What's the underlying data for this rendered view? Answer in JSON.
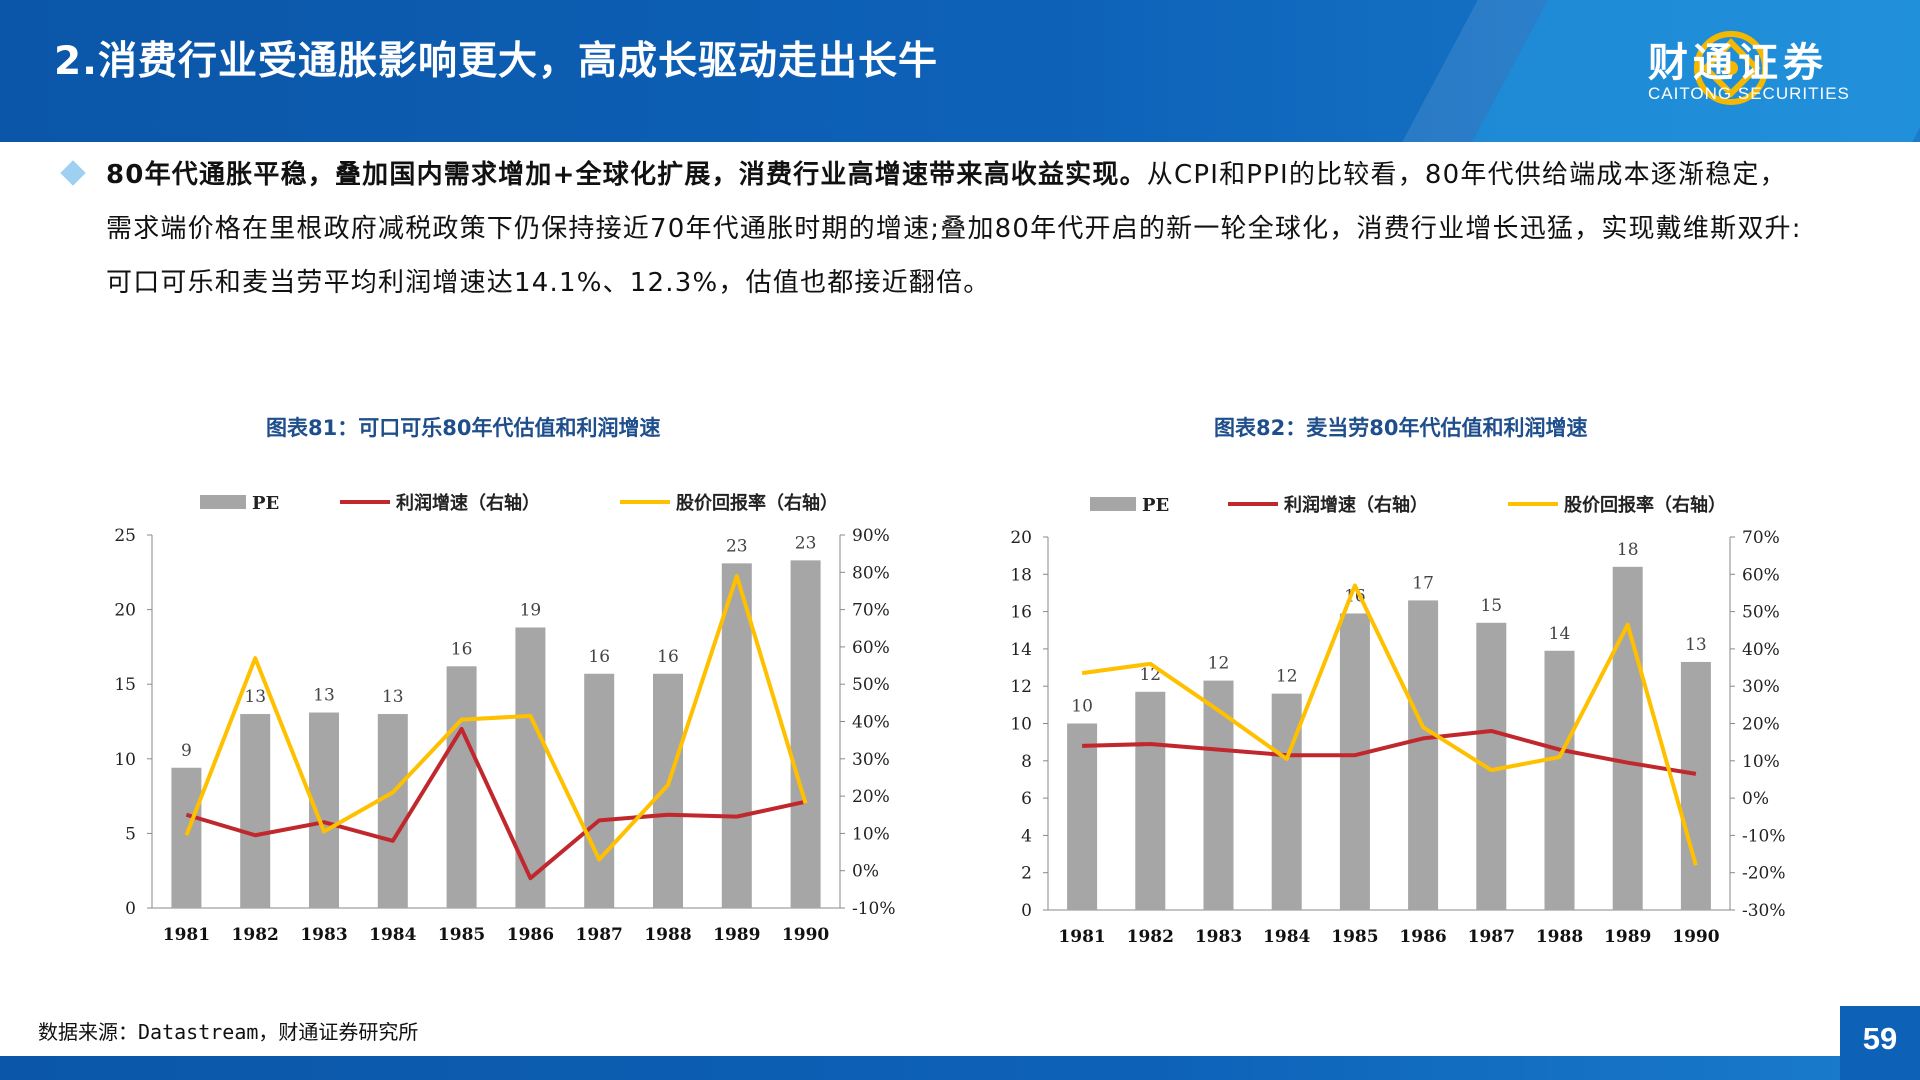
{
  "header": {
    "title": "2.消费行业受通胀影响更大，高成长驱动走出长牛",
    "logo_cn": "财通证券",
    "logo_en": "CAITONG SECURITIES"
  },
  "body": {
    "bold_text": "80年代通胀平稳，叠加国内需求增加+全球化扩展，消费行业高增速带来高收益实现。",
    "normal_text": "从CPI和PPI的比较看，80年代供给端成本逐渐稳定，需求端价格在里根政府减税政策下仍保持接近70年代通胀时期的增速;叠加80年代开启的新一轮全球化，消费行业增长迅猛，实现戴维斯双升:可口可乐和麦当劳平均利润增速达14.1%、12.3%，估值也都接近翻倍。"
  },
  "footer": {
    "source": "数据来源：Datastream，财通证券研究所",
    "page": "59"
  },
  "colors": {
    "header_blue": "#0d62b8",
    "bar_gray": "#a6a6a6",
    "profit_red": "#c0282d",
    "return_yellow": "#ffc000",
    "title_blue": "#1f4e8c"
  },
  "chart_data": [
    {
      "type": "bar+line",
      "title": "图表81：可口可乐80年代估值和利润增速",
      "categories": [
        "1981",
        "1982",
        "1983",
        "1984",
        "1985",
        "1986",
        "1987",
        "1988",
        "1989",
        "1990"
      ],
      "legend": [
        "PE",
        "利润增速（右轴）",
        "股价回报率（右轴）"
      ],
      "legend_position": "top",
      "left_axis": {
        "min": 0,
        "max": 25,
        "ticks": [
          "0",
          "5",
          "10",
          "15",
          "20",
          "25"
        ]
      },
      "right_axis": {
        "min": -10,
        "max": 90,
        "ticks": [
          "-10%",
          "0%",
          "10%",
          "20%",
          "30%",
          "40%",
          "50%",
          "60%",
          "70%",
          "80%",
          "90%"
        ]
      },
      "series": [
        {
          "name": "PE",
          "type": "bar",
          "axis": "left",
          "values": [
            9.4,
            13.0,
            13.1,
            13.0,
            16.2,
            18.8,
            15.7,
            15.7,
            23.1,
            23.3
          ],
          "labels": [
            "9",
            "13",
            "13",
            "13",
            "16",
            "19",
            "16",
            "16",
            "23",
            "23"
          ]
        },
        {
          "name": "利润增速（右轴）",
          "type": "line",
          "axis": "right",
          "values": [
            15,
            9.5,
            13,
            8,
            38,
            -2,
            13.5,
            15,
            14.5,
            18.5
          ]
        },
        {
          "name": "股价回报率（右轴）",
          "type": "line",
          "axis": "right",
          "values": [
            9.5,
            57,
            10.5,
            21,
            40.5,
            41.5,
            3,
            23,
            79,
            18
          ]
        }
      ],
      "grid": false
    },
    {
      "type": "bar+line",
      "title": "图表82：麦当劳80年代估值和利润增速",
      "categories": [
        "1981",
        "1982",
        "1983",
        "1984",
        "1985",
        "1986",
        "1987",
        "1988",
        "1989",
        "1990"
      ],
      "legend": [
        "PE",
        "利润增速（右轴）",
        "股价回报率（右轴）"
      ],
      "legend_position": "top",
      "left_axis": {
        "min": 0,
        "max": 20,
        "ticks": [
          "0",
          "2",
          "4",
          "6",
          "8",
          "10",
          "12",
          "14",
          "16",
          "18",
          "20"
        ]
      },
      "right_axis": {
        "min": -30,
        "max": 70,
        "ticks": [
          "-30%",
          "-20%",
          "-10%",
          "0%",
          "10%",
          "20%",
          "30%",
          "40%",
          "50%",
          "60%",
          "70%"
        ]
      },
      "series": [
        {
          "name": "PE",
          "type": "bar",
          "axis": "left",
          "values": [
            10.0,
            11.7,
            12.3,
            11.6,
            15.9,
            16.6,
            15.4,
            13.9,
            18.4,
            13.3
          ],
          "labels": [
            "10",
            "12",
            "12",
            "12",
            "16",
            "17",
            "15",
            "14",
            "18",
            "13"
          ]
        },
        {
          "name": "利润增速（右轴）",
          "type": "line",
          "axis": "right",
          "values": [
            14,
            14.5,
            13,
            11.5,
            11.5,
            16,
            18,
            13,
            9.5,
            6.5
          ]
        },
        {
          "name": "股价回报率（右轴）",
          "type": "line",
          "axis": "right",
          "values": [
            33.5,
            36,
            23.5,
            10.5,
            57,
            19,
            7.5,
            11,
            46.5,
            -18
          ]
        }
      ],
      "grid": false
    }
  ]
}
